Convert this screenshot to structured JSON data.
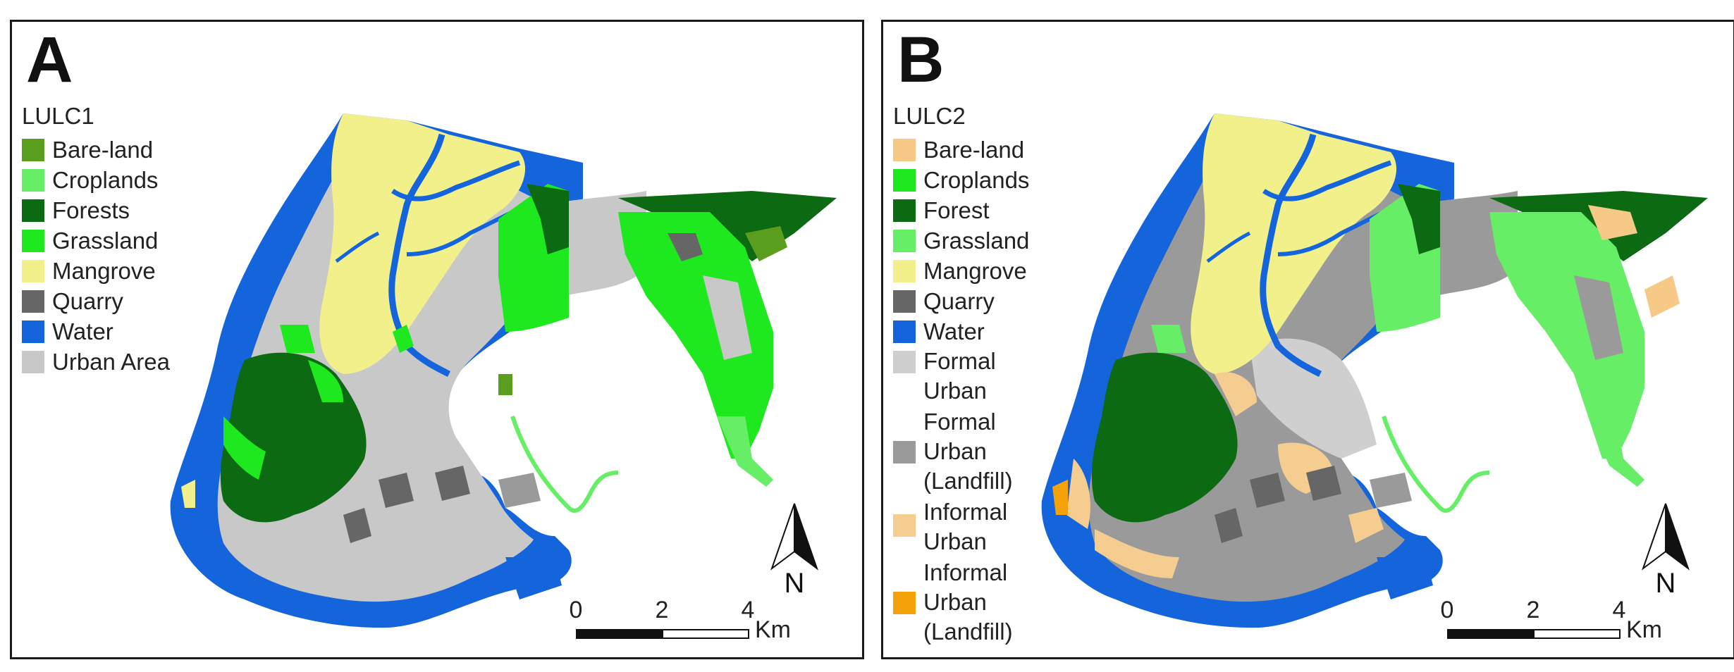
{
  "panels": [
    {
      "letter": "A",
      "legend_title": "LULC1",
      "legend": [
        {
          "label": "Bare-land",
          "color": "#5a9e1e"
        },
        {
          "label": "Croplands",
          "color": "#66ee66"
        },
        {
          "label": "Forests",
          "color": "#0c6a12"
        },
        {
          "label": "Grassland",
          "color": "#1ee81e"
        },
        {
          "label": "Mangrove",
          "color": "#f1f08a"
        },
        {
          "label": "Quarry",
          "color": "#666666"
        },
        {
          "label": "Water",
          "color": "#1464dc"
        },
        {
          "label": "Urban Area",
          "color": "#c8c8c8"
        }
      ],
      "scale": {
        "ticks": [
          "0",
          "2",
          "4"
        ],
        "unit": "Km"
      },
      "north": "N"
    },
    {
      "letter": "B",
      "legend_title": "LULC2",
      "legend": [
        {
          "label": "Bare-land",
          "color": "#f7c987"
        },
        {
          "label": "Croplands",
          "color": "#1ee81e"
        },
        {
          "label": "Forest",
          "color": "#0c6a12"
        },
        {
          "label": "Grassland",
          "color": "#66ee66"
        },
        {
          "label": "Mangrove",
          "color": "#f1f08a"
        },
        {
          "label": "Quarry",
          "color": "#666666"
        },
        {
          "label": "Water",
          "color": "#1464dc"
        },
        {
          "label": "Formal\nUrban",
          "color": "#cfcfcf"
        },
        {
          "label": "Formal\nUrban\n(Landfill)",
          "color": "#9a9a9a"
        },
        {
          "label": "Informal\nUrban",
          "color": "#f5cd91"
        },
        {
          "label": "Informal\nUrban\n(Landfill)",
          "color": "#f5a10a"
        }
      ],
      "scale": {
        "ticks": [
          "0",
          "2",
          "4"
        ],
        "unit": "Km"
      },
      "north": "N"
    }
  ]
}
